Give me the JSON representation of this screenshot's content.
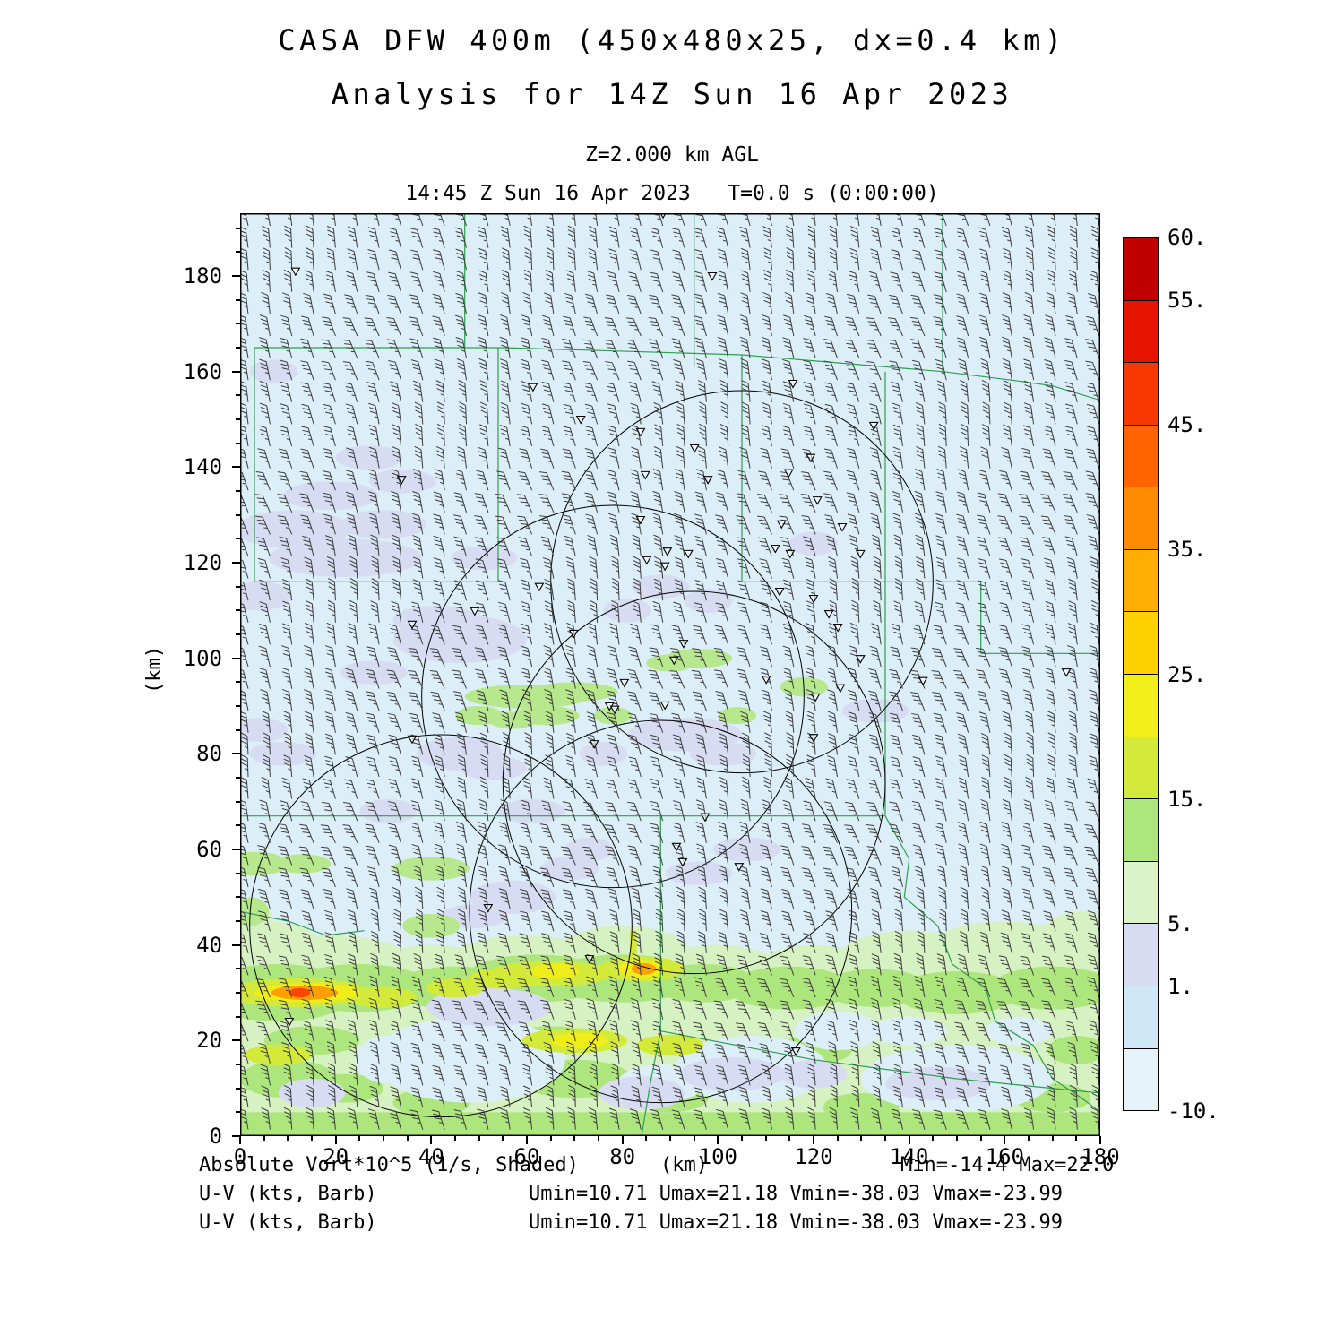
{
  "title": {
    "line1": "CASA DFW 400m (450x480x25, dx=0.4 km)",
    "line2": "Analysis for 14Z Sun 16 Apr 2023"
  },
  "level_label": "Z=2.000 km AGL",
  "time_label": "14:45 Z Sun 16 Apr 2023   T=0.0 s (0:00:00)",
  "footer": {
    "field_label": "Absolute Vort*10^5 (1/s, Shaded)",
    "axis_unit": "(km)",
    "minmax": "Min=-14.4 Max=22.0",
    "barb_label1": "U-V (kts, Barb)",
    "barb_stats1": "Umin=10.71 Umax=21.18 Vmin=-38.03 Vmax=-23.99",
    "barb_label2": "U-V (kts, Barb)",
    "barb_stats2": "Umin=10.71 Umax=21.18 Vmin=-38.03 Vmax=-23.99"
  },
  "chart_data": {
    "type": "heatmap",
    "title": "CASA DFW 400m (450x480x25, dx=0.4 km) Analysis for 14Z Sun 16 Apr 2023",
    "level": "Z=2.000 km AGL",
    "valid_time": "14:45 Z Sun 16 Apr 2023",
    "forecast_time": "T=0.0 s (0:00:00)",
    "xlabel": "(km)",
    "ylabel": "(km)",
    "x_range_km": [
      0,
      180
    ],
    "y_range_km": [
      0,
      193.1
    ],
    "x_ticks": [
      0,
      20,
      40,
      60,
      80,
      100,
      120,
      140,
      160,
      180
    ],
    "y_ticks": [
      0,
      20,
      40,
      60,
      80,
      100,
      120,
      140,
      160,
      180
    ],
    "field": {
      "name": "Absolute Vort*10^5",
      "units": "1/s",
      "style": "Shaded",
      "min": -14.4,
      "max": 22.0
    },
    "wind": {
      "name": "U-V",
      "units": "kts",
      "style": "Barb",
      "umin": 10.71,
      "umax": 21.18,
      "vmin": -38.03,
      "vmax": -23.99
    },
    "colors": {
      "background": "#dceef8",
      "county": "#2e9e4f",
      "barb": "#3c3c3c",
      "frame": "#000000"
    },
    "colorbar": {
      "levels": [
        -10,
        -5,
        1,
        5,
        10,
        15,
        20,
        25,
        30,
        35,
        40,
        45,
        50,
        55,
        60
      ],
      "colors": [
        "#e6f3fa",
        "#cfe7f7",
        "#d7dcf3",
        "#dbf3c9",
        "#aee67e",
        "#d4ea3a",
        "#f2ee1a",
        "#ffd000",
        "#ffae00",
        "#ff8c00",
        "#ff6400",
        "#f83800",
        "#e41400",
        "#c00000"
      ],
      "tick_values": [
        60,
        55,
        45,
        35,
        25,
        15,
        5,
        1,
        -10
      ],
      "tick_labels": [
        "60.",
        "55.",
        "45.",
        "35.",
        "25.",
        "15.",
        "5.",
        "1.",
        "-10."
      ]
    },
    "wind_grid": {
      "cols": 40,
      "rows": 42,
      "x0": 9,
      "y0": 14,
      "dx": 24.35,
      "dy": 24.6,
      "base_rot": -13,
      "rot_amp": 7,
      "speed_kts": 35,
      "direction_from": "NNW"
    },
    "range_circles": [
      [
        105,
        116,
        40
      ],
      [
        78,
        92,
        40
      ],
      [
        95,
        74,
        40
      ],
      [
        88,
        47,
        40
      ],
      [
        42,
        44,
        40
      ]
    ],
    "county_lines": [
      [
        [
          47,
          193.2
        ],
        [
          47,
          165
        ]
      ],
      [
        [
          95,
          193.2
        ],
        [
          95,
          161
        ]
      ],
      [
        [
          147,
          193.2
        ],
        [
          147,
          160
        ]
      ],
      [
        [
          3,
          165
        ],
        [
          55,
          165
        ],
        [
          105,
          163.5
        ],
        [
          147,
          160
        ]
      ],
      [
        [
          147,
          160
        ],
        [
          163,
          158
        ],
        [
          170,
          157
        ],
        [
          180,
          154
        ]
      ],
      [
        [
          3,
          165
        ],
        [
          3,
          116
        ]
      ],
      [
        [
          3,
          116
        ],
        [
          54,
          116
        ]
      ],
      [
        [
          54,
          165
        ],
        [
          54,
          116
        ]
      ],
      [
        [
          105,
          163.5
        ],
        [
          105,
          116
        ]
      ],
      [
        [
          105,
          116
        ],
        [
          135,
          116
        ]
      ],
      [
        [
          135,
          160
        ],
        [
          135,
          67
        ]
      ],
      [
        [
          135,
          116
        ],
        [
          155,
          116
        ],
        [
          155,
          101
        ]
      ],
      [
        [
          155,
          101
        ],
        [
          180,
          101
        ]
      ],
      [
        [
          0,
          67
        ],
        [
          135,
          67
        ]
      ],
      [
        [
          88,
          67
        ],
        [
          88,
          22
        ]
      ],
      [
        [
          88,
          22
        ],
        [
          120,
          16
        ],
        [
          150,
          12
        ],
        [
          180,
          9
        ]
      ],
      [
        [
          135,
          67
        ],
        [
          140,
          58
        ],
        [
          139,
          50
        ],
        [
          146,
          44
        ],
        [
          149,
          36
        ],
        [
          156,
          31
        ],
        [
          158,
          24
        ],
        [
          166,
          19
        ],
        [
          170,
          12
        ],
        [
          176,
          8
        ],
        [
          180,
          5
        ]
      ],
      [
        [
          0,
          47
        ],
        [
          10,
          45
        ],
        [
          18,
          42
        ],
        [
          26,
          43
        ]
      ],
      [
        [
          88,
          22
        ],
        [
          86,
          12
        ],
        [
          84,
          0
        ]
      ]
    ],
    "markers": [
      [
        88.5,
        193
      ],
      [
        11.6,
        181
      ],
      [
        98.8,
        180
      ],
      [
        61.3,
        156.8
      ],
      [
        115.7,
        157.5
      ],
      [
        71.3,
        150
      ],
      [
        83.8,
        147.4
      ],
      [
        95.1,
        144
      ],
      [
        132.6,
        148.7
      ],
      [
        119.4,
        142
      ],
      [
        33.8,
        137.4
      ],
      [
        84.8,
        138.4
      ],
      [
        97.9,
        137.4
      ],
      [
        114.8,
        138.8
      ],
      [
        120.8,
        133.1
      ],
      [
        126,
        127.5
      ],
      [
        113.3,
        128.1
      ],
      [
        83.8,
        129
      ],
      [
        89.4,
        122.4
      ],
      [
        93.8,
        121.9
      ],
      [
        88.9,
        119.3
      ],
      [
        85.1,
        120.6
      ],
      [
        112,
        123
      ],
      [
        115.1,
        121.9
      ],
      [
        129.8,
        121.9
      ],
      [
        62.6,
        115
      ],
      [
        49.1,
        109.9
      ],
      [
        36,
        107.1
      ],
      [
        112.9,
        114
      ],
      [
        120,
        112.5
      ],
      [
        123.2,
        109.3
      ],
      [
        125.1,
        106.5
      ],
      [
        69.8,
        105.2
      ],
      [
        92.8,
        103.1
      ],
      [
        90.8,
        99.6
      ],
      [
        129.8,
        99.9
      ],
      [
        80.4,
        94.9
      ],
      [
        110.1,
        95.6
      ],
      [
        125.6,
        93.8
      ],
      [
        142.9,
        95.3
      ],
      [
        172.9,
        97.1
      ],
      [
        120.4,
        91.9
      ],
      [
        77.3,
        90
      ],
      [
        78.4,
        89.3
      ],
      [
        88.9,
        90.2
      ],
      [
        120,
        83.4
      ],
      [
        74.1,
        82.1
      ],
      [
        36,
        83.1
      ],
      [
        97.3,
        66.8
      ],
      [
        91.3,
        60.6
      ],
      [
        92.6,
        57.4
      ],
      [
        104.4,
        56.4
      ],
      [
        51.9,
        47.8
      ],
      [
        73.1,
        37.1
      ],
      [
        10.3,
        24
      ],
      [
        116.3,
        17.8
      ]
    ],
    "shading": [
      {
        "name": "green-band-base",
        "color": "#d7f2c2",
        "rects": [
          [
            0,
            0,
            180,
            36
          ]
        ],
        "ellipses": [
          [
            5,
            37,
            14,
            8
          ],
          [
            20,
            36,
            16,
            6
          ],
          [
            40,
            35,
            13,
            5
          ],
          [
            60,
            36,
            17,
            6
          ],
          [
            80,
            37,
            15,
            7
          ],
          [
            100,
            35,
            13,
            5
          ],
          [
            120,
            35,
            12,
            5
          ],
          [
            140,
            37,
            15,
            6
          ],
          [
            160,
            38,
            17,
            7
          ],
          [
            176,
            39,
            10,
            8
          ],
          [
            2,
            44,
            5,
            6
          ]
        ]
      },
      {
        "name": "green-band-mid",
        "color": "#aee67e",
        "rects": [
          [
            0,
            0,
            180,
            5
          ]
        ],
        "ellipses": [
          [
            8,
            30,
            16,
            6
          ],
          [
            25,
            31,
            15,
            5
          ],
          [
            45,
            31,
            13,
            4.5
          ],
          [
            62,
            33,
            15,
            5
          ],
          [
            80,
            33,
            16,
            5
          ],
          [
            97,
            32,
            11,
            4
          ],
          [
            115,
            31,
            13,
            4.5
          ],
          [
            133,
            31,
            11,
            4
          ],
          [
            150,
            30,
            13,
            4.5
          ],
          [
            170,
            31,
            13,
            4.5
          ],
          [
            10,
            12,
            10,
            4
          ],
          [
            22,
            10,
            8,
            3
          ],
          [
            70,
            12,
            12,
            4
          ],
          [
            90,
            8,
            8,
            3
          ],
          [
            130,
            6,
            8,
            3
          ],
          [
            170,
            8,
            8,
            3
          ],
          [
            40,
            7,
            8,
            3
          ],
          [
            15,
            20,
            10,
            3
          ],
          [
            65,
            20,
            10,
            3
          ],
          [
            120,
            18,
            8,
            3
          ],
          [
            175,
            18,
            6,
            3
          ]
        ]
      },
      {
        "name": "blue-gaps",
        "color": "#dceef8",
        "ellipses": [
          [
            48,
            16,
            20,
            9
          ],
          [
            107,
            14,
            16,
            7
          ],
          [
            150,
            12,
            20,
            7
          ],
          [
            31,
            16,
            7,
            5
          ],
          [
            125,
            22,
            9,
            4
          ],
          [
            163,
            22,
            7,
            3
          ],
          [
            88,
            11,
            9,
            4
          ],
          [
            140,
            22,
            8,
            3
          ]
        ]
      },
      {
        "name": "lavender-patches",
        "color": "#d7dcf3",
        "ellipses": [
          [
            22,
            121,
            16,
            4
          ],
          [
            11,
            127,
            12,
            4
          ],
          [
            30,
            128,
            9,
            3
          ],
          [
            19,
            134,
            10,
            3
          ],
          [
            34,
            137,
            7,
            2.5
          ],
          [
            4,
            113,
            7,
            3
          ],
          [
            46,
            104,
            14,
            5
          ],
          [
            41,
            108,
            9,
            3
          ],
          [
            28,
            97,
            7,
            2.5
          ],
          [
            4,
            85,
            6,
            2.5
          ],
          [
            9,
            80,
            7,
            2.5
          ],
          [
            46,
            80,
            9,
            3.5
          ],
          [
            53,
            77,
            7,
            2.5
          ],
          [
            61,
            68,
            7,
            2.5
          ],
          [
            31,
            68,
            6,
            2.5
          ],
          [
            93,
            84,
            12,
            3.5
          ],
          [
            101,
            80,
            7,
            2.5
          ],
          [
            76,
            80,
            5,
            2.5
          ],
          [
            133,
            89,
            7,
            2.5
          ],
          [
            57,
            50,
            9,
            3.5
          ],
          [
            49,
            46,
            7,
            2.5
          ],
          [
            96,
            55,
            7,
            2.5
          ],
          [
            73,
            60,
            5,
            2.5
          ],
          [
            88,
            115,
            6,
            2.5
          ],
          [
            81,
            110,
            5,
            2.5
          ],
          [
            51,
            121,
            7,
            2.5
          ],
          [
            27,
            142,
            7,
            2.5
          ],
          [
            7,
            160,
            5,
            2.5
          ],
          [
            106,
            60,
            7,
            2.5
          ],
          [
            69,
            56,
            6,
            2.5
          ],
          [
            120,
            124,
            5,
            2.5
          ],
          [
            98,
            112,
            5,
            2.5
          ],
          [
            52,
            27,
            13,
            4
          ],
          [
            103,
            13,
            11,
            3.5
          ],
          [
            146,
            11,
            11,
            3.5
          ],
          [
            84,
            9,
            9,
            3.5
          ],
          [
            120,
            13,
            7,
            3
          ],
          [
            15,
            9,
            7,
            3
          ]
        ]
      },
      {
        "name": "green-streaks",
        "color": "#b7e88e",
        "ellipses": [
          [
            3,
            57,
            7,
            2.5
          ],
          [
            13,
            57,
            6,
            2
          ],
          [
            40,
            56,
            8,
            2.5
          ],
          [
            60,
            92,
            13,
            2.5
          ],
          [
            70,
            93,
            9,
            2
          ],
          [
            64,
            88,
            7,
            2
          ],
          [
            57,
            87,
            5,
            1.8
          ],
          [
            78,
            88,
            4,
            1.8
          ],
          [
            96,
            100,
            7,
            2
          ],
          [
            90,
            99,
            5,
            1.8
          ],
          [
            50,
            88,
            5,
            2
          ],
          [
            104,
            88,
            4,
            1.8
          ],
          [
            118,
            94,
            5,
            2
          ],
          [
            40,
            44,
            6,
            2.5
          ],
          [
            2,
            47,
            4,
            3
          ]
        ]
      },
      {
        "name": "yellow-green-streaks",
        "color": "#d4ea3a",
        "rects": [
          [
            81.6,
            35,
            83.0,
            43
          ]
        ],
        "ellipses": [
          [
            12,
            30,
            15,
            3
          ],
          [
            30,
            29,
            7,
            2.2
          ],
          [
            55,
            33,
            7,
            2.2
          ],
          [
            65,
            34,
            13,
            2.6
          ],
          [
            84,
            35,
            9,
            2.6
          ],
          [
            70,
            20,
            11,
            2.6
          ],
          [
            90,
            19,
            7,
            2.2
          ],
          [
            8,
            17,
            7,
            2.2
          ],
          [
            45,
            31,
            6,
            2
          ]
        ]
      },
      {
        "name": "yellow-streaks",
        "color": "#f0ee18",
        "ellipses": [
          [
            14,
            30,
            11,
            2
          ],
          [
            84,
            35,
            5,
            1.8
          ],
          [
            66,
            34.5,
            5,
            1.6
          ],
          [
            71,
            20,
            6,
            1.6
          ]
        ]
      },
      {
        "name": "orange-streaks",
        "color": "#ffa000",
        "ellipses": [
          [
            13.5,
            30,
            7,
            1.5
          ],
          [
            84.5,
            35,
            2.6,
            1.2
          ]
        ]
      },
      {
        "name": "red-core",
        "color": "#f84800",
        "ellipses": [
          [
            12.5,
            30,
            2.2,
            1
          ]
        ]
      }
    ]
  }
}
